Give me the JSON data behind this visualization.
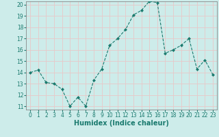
{
  "x": [
    0,
    1,
    2,
    3,
    4,
    5,
    6,
    7,
    8,
    9,
    10,
    11,
    12,
    13,
    14,
    15,
    16,
    17,
    18,
    19,
    20,
    21,
    22,
    23
  ],
  "y": [
    14.0,
    14.2,
    13.1,
    13.0,
    12.5,
    11.0,
    11.8,
    11.0,
    13.3,
    14.3,
    16.4,
    17.0,
    17.8,
    19.1,
    19.5,
    20.3,
    20.2,
    15.7,
    16.0,
    16.4,
    17.0,
    14.3,
    15.1,
    13.8
  ],
  "line_color": "#1a7a6e",
  "marker": "D",
  "marker_size": 2.0,
  "bg_color": "#cdecea",
  "major_grid_color": "#e8c8c8",
  "minor_grid_color": "#ffffff",
  "xlabel": "Humidex (Indice chaleur)",
  "ylim": [
    11,
    20
  ],
  "xlim": [
    -0.5,
    23.5
  ],
  "yticks": [
    11,
    12,
    13,
    14,
    15,
    16,
    17,
    18,
    19,
    20
  ],
  "xticks": [
    0,
    1,
    2,
    3,
    4,
    5,
    6,
    7,
    8,
    9,
    10,
    11,
    12,
    13,
    14,
    15,
    16,
    17,
    18,
    19,
    20,
    21,
    22,
    23
  ],
  "tick_fontsize": 5.5,
  "xlabel_fontsize": 7,
  "tick_color": "#1a7a6e",
  "axis_color": "#1a7a6e",
  "spine_color": "#888888"
}
